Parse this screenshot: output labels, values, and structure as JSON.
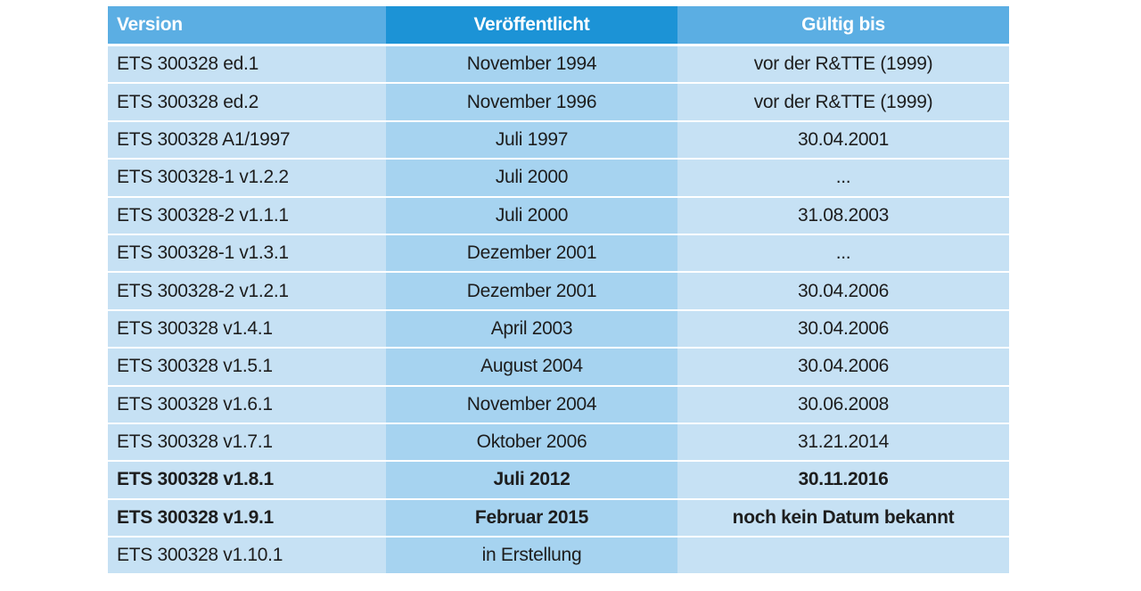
{
  "table": {
    "headers": {
      "version": "Version",
      "published": "Veröffentlicht",
      "valid_until": "Gültig bis"
    },
    "rows": [
      {
        "version": "ETS 300328 ed.1",
        "published": "November 1994",
        "valid_until": "vor der R&TTE (1999)",
        "bold": false
      },
      {
        "version": "ETS 300328 ed.2",
        "published": "November 1996",
        "valid_until": "vor der R&TTE (1999)",
        "bold": false
      },
      {
        "version": "ETS 300328 A1/1997",
        "published": "Juli 1997",
        "valid_until": "30.04.2001",
        "bold": false
      },
      {
        "version": "ETS 300328-1 v1.2.2",
        "published": "Juli 2000",
        "valid_until": "...",
        "bold": false
      },
      {
        "version": "ETS 300328-2 v1.1.1",
        "published": "Juli 2000",
        "valid_until": "31.08.2003",
        "bold": false
      },
      {
        "version": "ETS 300328-1 v1.3.1",
        "published": "Dezember 2001",
        "valid_until": "...",
        "bold": false
      },
      {
        "version": "ETS 300328-2 v1.2.1",
        "published": "Dezember 2001",
        "valid_until": "30.04.2006",
        "bold": false
      },
      {
        "version": "ETS 300328 v1.4.1",
        "published": "April 2003",
        "valid_until": "30.04.2006",
        "bold": false
      },
      {
        "version": "ETS 300328 v1.5.1",
        "published": "August 2004",
        "valid_until": "30.04.2006",
        "bold": false
      },
      {
        "version": "ETS 300328 v1.6.1",
        "published": "November 2004",
        "valid_until": "30.06.2008",
        "bold": false
      },
      {
        "version": "ETS 300328 v1.7.1",
        "published": "Oktober 2006",
        "valid_until": "31.21.2014",
        "bold": false
      },
      {
        "version": "ETS 300328 v1.8.1",
        "published": "Juli 2012",
        "valid_until": "30.11.2016",
        "bold": true
      },
      {
        "version": "ETS 300328 v1.9.1",
        "published": "Februar 2015",
        "valid_until": "noch kein Datum bekannt",
        "bold": true
      },
      {
        "version": "ETS 300328 v1.10.1",
        "published": "in Erstellung",
        "valid_until": "",
        "bold": false
      }
    ]
  },
  "colors": {
    "header_light": "#5baee3",
    "header_dark": "#1c93d6",
    "cell_light": "#c6e1f4",
    "cell_mid": "#a6d3f0"
  }
}
